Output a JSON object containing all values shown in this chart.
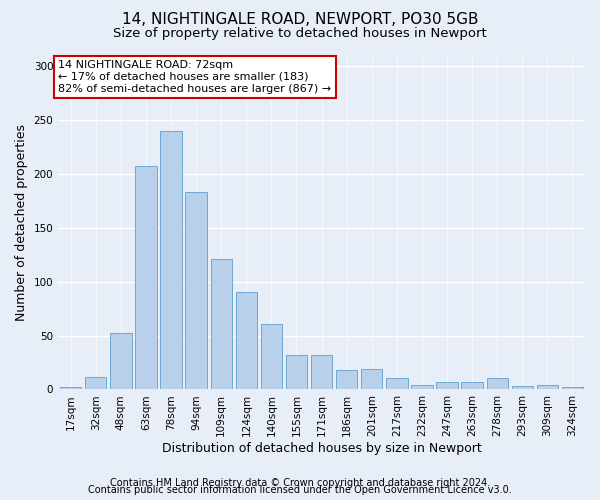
{
  "title1": "14, NIGHTINGALE ROAD, NEWPORT, PO30 5GB",
  "title2": "Size of property relative to detached houses in Newport",
  "xlabel": "Distribution of detached houses by size in Newport",
  "ylabel": "Number of detached properties",
  "categories": [
    "17sqm",
    "32sqm",
    "48sqm",
    "63sqm",
    "78sqm",
    "94sqm",
    "109sqm",
    "124sqm",
    "140sqm",
    "155sqm",
    "171sqm",
    "186sqm",
    "201sqm",
    "217sqm",
    "232sqm",
    "247sqm",
    "263sqm",
    "278sqm",
    "293sqm",
    "309sqm",
    "324sqm"
  ],
  "values": [
    2,
    12,
    52,
    207,
    240,
    183,
    121,
    90,
    61,
    32,
    32,
    18,
    19,
    11,
    4,
    7,
    7,
    11,
    3,
    4,
    2
  ],
  "bar_color": "#b8d0ea",
  "bar_edge_color": "#6aaad4",
  "annotation_box_text": "14 NIGHTINGALE ROAD: 72sqm\n← 17% of detached houses are smaller (183)\n82% of semi-detached houses are larger (867) →",
  "annotation_box_color": "#ffffff",
  "annotation_box_edge_color": "#cc0000",
  "footer1": "Contains HM Land Registry data © Crown copyright and database right 2024.",
  "footer2": "Contains public sector information licensed under the Open Government Licence v3.0.",
  "ylim": [
    0,
    310
  ],
  "yticks": [
    0,
    50,
    100,
    150,
    200,
    250,
    300
  ],
  "bg_color": "#e8eef8",
  "plot_bg_color": "#e8eef8",
  "grid_color": "#ffffff",
  "title1_fontsize": 11,
  "title2_fontsize": 9.5,
  "xlabel_fontsize": 9,
  "ylabel_fontsize": 9,
  "tick_fontsize": 7.5,
  "footer_fontsize": 7
}
